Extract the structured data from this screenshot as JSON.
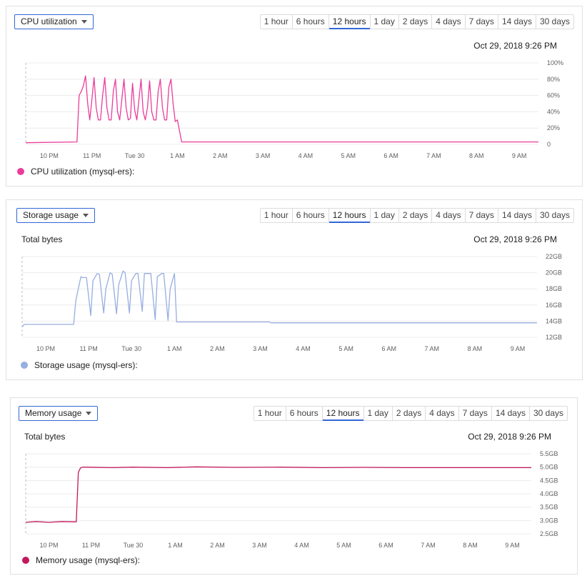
{
  "ranges": [
    "1 hour",
    "6 hours",
    "12 hours",
    "1 day",
    "2 days",
    "4 days",
    "7 days",
    "14 days",
    "30 days"
  ],
  "active_range": "12 hours",
  "date": "Oct 29, 2018 9:26 PM",
  "x_ticks": [
    "10 PM",
    "11 PM",
    "Tue 30",
    "1 AM",
    "2 AM",
    "3 AM",
    "4 AM",
    "5 AM",
    "6 AM",
    "7 AM",
    "8 AM",
    "9 AM"
  ],
  "cards": [
    {
      "metric": "CPU utilization",
      "unit_label": "",
      "legend": "CPU utilization (mysql-ers):",
      "color": "#ea3d9b"
    },
    {
      "metric": "Storage usage",
      "unit_label": "Total bytes",
      "legend": "Storage usage (mysql-ers):",
      "color": "#97aee0"
    },
    {
      "metric": "Memory usage",
      "unit_label": "Total bytes",
      "legend": "Memory usage (mysql-ers):",
      "color": "#c2185b"
    }
  ],
  "chart_data": [
    {
      "type": "line",
      "title": "CPU utilization",
      "ylim": [
        0,
        100
      ],
      "y_ticks": [
        0,
        20,
        40,
        60,
        80,
        100
      ],
      "y_tick_labels": [
        "0",
        "20%",
        "40%",
        "60%",
        "80%",
        "100%"
      ],
      "x_range": [
        21.45,
        33.45
      ],
      "series": [
        {
          "name": "CPU utilization (mysql-ers)",
          "x": [
            21.45,
            22.65,
            22.7,
            22.75,
            22.8,
            22.85,
            22.9,
            22.95,
            23.0,
            23.05,
            23.1,
            23.15,
            23.2,
            23.25,
            23.3,
            23.35,
            23.4,
            23.45,
            23.5,
            23.55,
            23.6,
            23.65,
            23.7,
            23.75,
            23.8,
            23.85,
            23.9,
            23.95,
            24.0,
            24.05,
            24.1,
            24.15,
            24.2,
            24.25,
            24.3,
            24.35,
            24.4,
            24.45,
            24.5,
            24.55,
            24.6,
            24.65,
            24.7,
            24.75,
            24.8,
            24.85,
            24.9,
            24.95,
            25.0,
            25.1,
            33.45
          ],
          "values": [
            2,
            3,
            60,
            65,
            72,
            84,
            50,
            30,
            55,
            82,
            45,
            30,
            30,
            60,
            82,
            45,
            30,
            30,
            65,
            80,
            40,
            30,
            55,
            80,
            45,
            30,
            32,
            75,
            42,
            30,
            55,
            80,
            40,
            30,
            45,
            78,
            40,
            30,
            30,
            65,
            80,
            45,
            30,
            30,
            70,
            80,
            50,
            28,
            30,
            3,
            3
          ]
        }
      ]
    },
    {
      "type": "line",
      "title": "Storage usage",
      "ylabel": "Total bytes",
      "ylim": [
        12,
        22
      ],
      "y_ticks": [
        12,
        14,
        16,
        18,
        20,
        22
      ],
      "y_tick_labels": [
        "12GB",
        "14GB",
        "16GB",
        "18GB",
        "20GB",
        "22GB"
      ],
      "x_range": [
        21.45,
        33.45
      ],
      "series": [
        {
          "name": "Storage usage (mysql-ers)",
          "x": [
            21.45,
            21.5,
            22.65,
            22.7,
            22.75,
            22.82,
            22.85,
            22.95,
            23.05,
            23.1,
            23.2,
            23.25,
            23.35,
            23.4,
            23.5,
            23.55,
            23.65,
            23.7,
            23.8,
            23.85,
            23.95,
            24.0,
            24.1,
            24.15,
            24.25,
            24.3,
            24.4,
            24.45,
            24.55,
            24.6,
            24.7,
            24.75,
            24.85,
            24.9,
            25.0,
            25.05,
            27.2,
            27.25,
            33.45
          ],
          "values": [
            13.3,
            13.6,
            13.6,
            16.5,
            17.8,
            19.5,
            19.4,
            19.4,
            14.7,
            19.0,
            19.9,
            19.8,
            15.0,
            18.0,
            20.0,
            19.8,
            14.9,
            18.5,
            20.2,
            20.0,
            15.0,
            19.0,
            19.9,
            19.9,
            15.2,
            19.9,
            19.9,
            19.9,
            14.2,
            19.5,
            19.9,
            19.9,
            14.1,
            18.0,
            19.9,
            13.9,
            13.9,
            13.8,
            13.8
          ]
        }
      ]
    },
    {
      "type": "line",
      "title": "Memory usage",
      "ylabel": "Total bytes",
      "ylim": [
        2.5,
        5.5
      ],
      "y_ticks": [
        2.5,
        3.0,
        3.5,
        4.0,
        4.5,
        5.0,
        5.5
      ],
      "y_tick_labels": [
        "2.5GB",
        "3.0GB",
        "3.5GB",
        "4.0GB",
        "4.5GB",
        "5.0GB",
        "5.5GB"
      ],
      "x_range": [
        21.45,
        33.45
      ],
      "series": [
        {
          "name": "Memory usage (mysql-ers)",
          "x": [
            21.45,
            21.7,
            22.0,
            22.3,
            22.65,
            22.7,
            22.75,
            22.8,
            22.9,
            23.5,
            24.0,
            24.8,
            25.5,
            26.4,
            27.5,
            28.5,
            29.5,
            30.5,
            31.5,
            32.5,
            33.45
          ],
          "values": [
            2.93,
            2.96,
            2.93,
            2.96,
            2.95,
            4.8,
            4.97,
            5.0,
            5.0,
            4.98,
            5.0,
            4.98,
            5.01,
            4.99,
            5.0,
            4.98,
            4.99,
            4.98,
            4.98,
            4.98,
            4.98
          ]
        }
      ]
    }
  ]
}
